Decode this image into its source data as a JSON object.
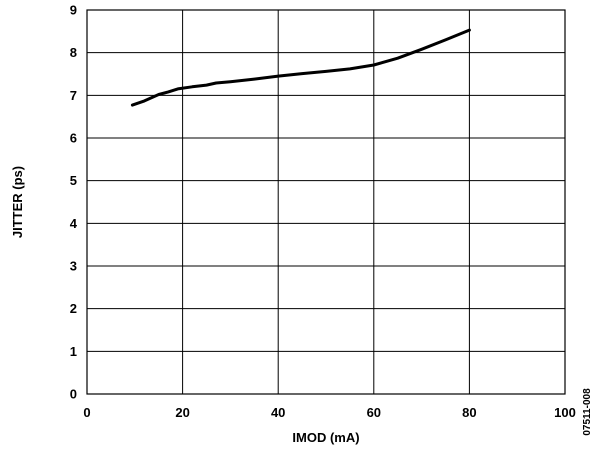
{
  "chart_data": {
    "type": "line",
    "title": "",
    "xlabel": "IMOD (mA)",
    "ylabel": "JITTER (ps)",
    "xlim": [
      0,
      100
    ],
    "ylim": [
      0,
      9
    ],
    "x_ticks": [
      0,
      20,
      40,
      60,
      80,
      100
    ],
    "y_ticks": [
      0,
      1,
      2,
      3,
      4,
      5,
      6,
      7,
      8,
      9
    ],
    "grid": true,
    "legend": "none",
    "line_color": "#000000",
    "series": [
      {
        "x": [
          9.5,
          12,
          15,
          17,
          19,
          22,
          25,
          27,
          30,
          35,
          40,
          45,
          50,
          55,
          60,
          65,
          70,
          75,
          80
        ],
        "y": [
          6.77,
          6.87,
          7.02,
          7.08,
          7.15,
          7.2,
          7.24,
          7.29,
          7.32,
          7.38,
          7.45,
          7.51,
          7.56,
          7.62,
          7.71,
          7.87,
          8.08,
          8.3,
          8.53
        ]
      }
    ],
    "figure_id": "07511-008"
  }
}
